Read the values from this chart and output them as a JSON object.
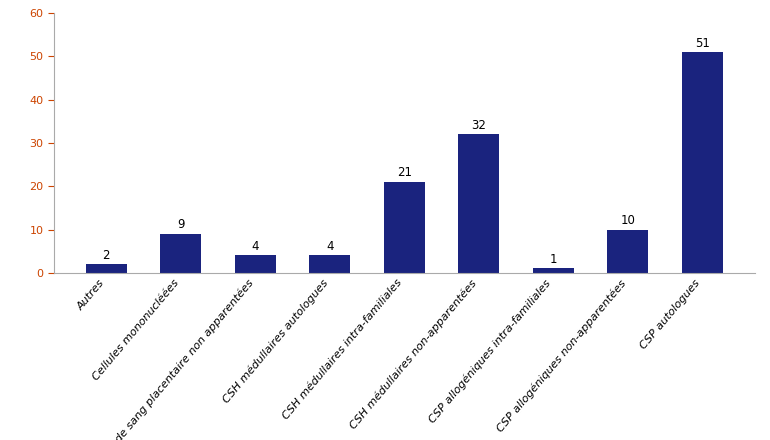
{
  "categories": [
    "Autres",
    "Cellules mononucléées",
    "CSH de sang placentaire non apparentées",
    "CSH médullaires autologues",
    "CSH médullaires intra-familiales",
    "CSH médullaires non-apparentées",
    "CSP allogéniques intra-familiales",
    "CSP allogéniques non-apparentées",
    "CSP autologues"
  ],
  "values": [
    2,
    9,
    4,
    4,
    21,
    32,
    1,
    10,
    51
  ],
  "bar_color": "#1a237e",
  "ylim": [
    0,
    60
  ],
  "yticks": [
    0,
    10,
    20,
    30,
    40,
    50,
    60
  ],
  "label_fontsize": 8,
  "value_fontsize": 8.5,
  "tick_label_rotation": 50,
  "background_color": "#ffffff",
  "bar_width": 0.55,
  "ytick_color": "#cc4400",
  "spine_color": "#aaaaaa"
}
